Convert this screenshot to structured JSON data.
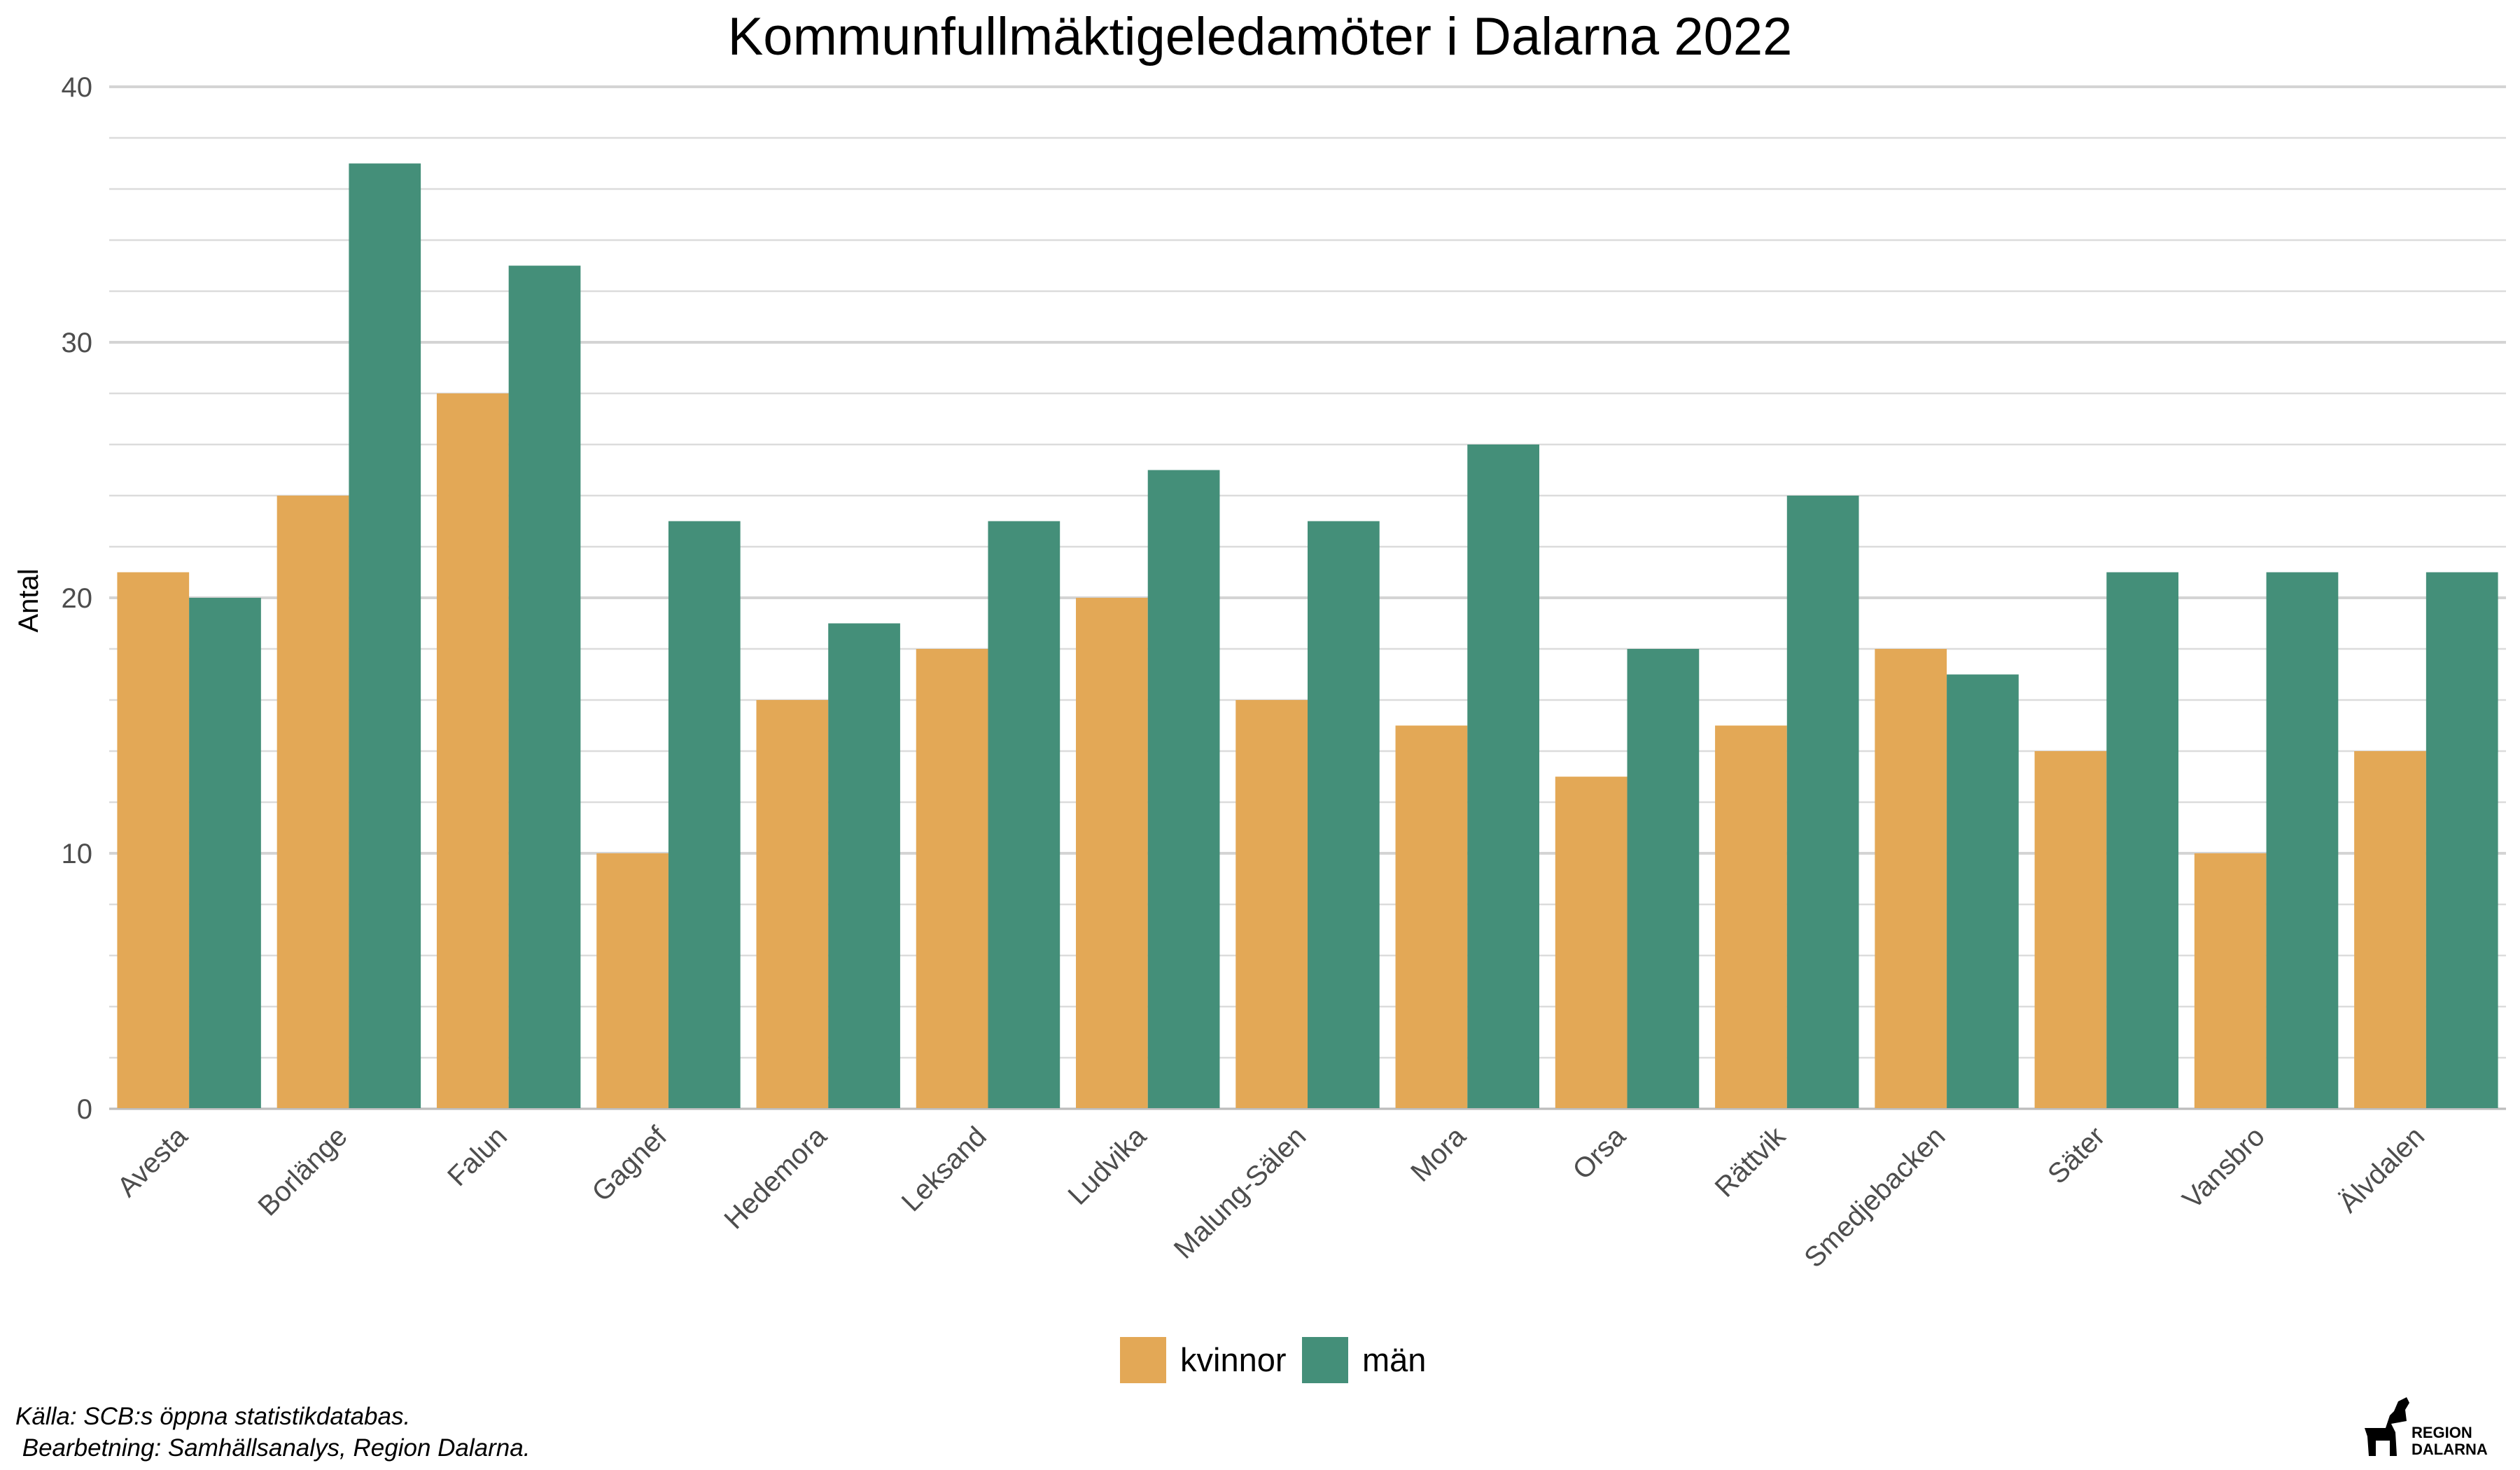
{
  "chart_data": {
    "type": "bar",
    "title": "Kommunfullmäktigeledamöter i Dalarna 2022",
    "xlabel": "",
    "ylabel": "Antal",
    "ylim": [
      0,
      40
    ],
    "yticks": [
      0,
      10,
      20,
      30,
      40
    ],
    "grid": true,
    "legend_position": "bottom",
    "categories": [
      "Avesta",
      "Borlänge",
      "Falun",
      "Gagnef",
      "Hedemora",
      "Leksand",
      "Ludvika",
      "Malung-Sälen",
      "Mora",
      "Orsa",
      "Rättvik",
      "Smedjebacken",
      "Säter",
      "Vansbro",
      "Älvdalen"
    ],
    "series": [
      {
        "name": "kvinnor",
        "color": "#E3A856",
        "values": [
          21,
          24,
          28,
          10,
          16,
          18,
          20,
          16,
          15,
          13,
          15,
          18,
          14,
          10,
          14
        ]
      },
      {
        "name": "män",
        "color": "#448F79",
        "values": [
          20,
          37,
          33,
          23,
          19,
          23,
          25,
          23,
          26,
          18,
          24,
          17,
          21,
          21,
          21
        ]
      }
    ]
  },
  "caption": {
    "line1": "Källa: SCB:s öppna statistikdatabas.",
    "line2": " Bearbetning: Samhällsanalys, Region Dalarna."
  },
  "logo": {
    "line1": "REGION",
    "line2": "DALARNA",
    "icon": "dala-horse-icon"
  }
}
